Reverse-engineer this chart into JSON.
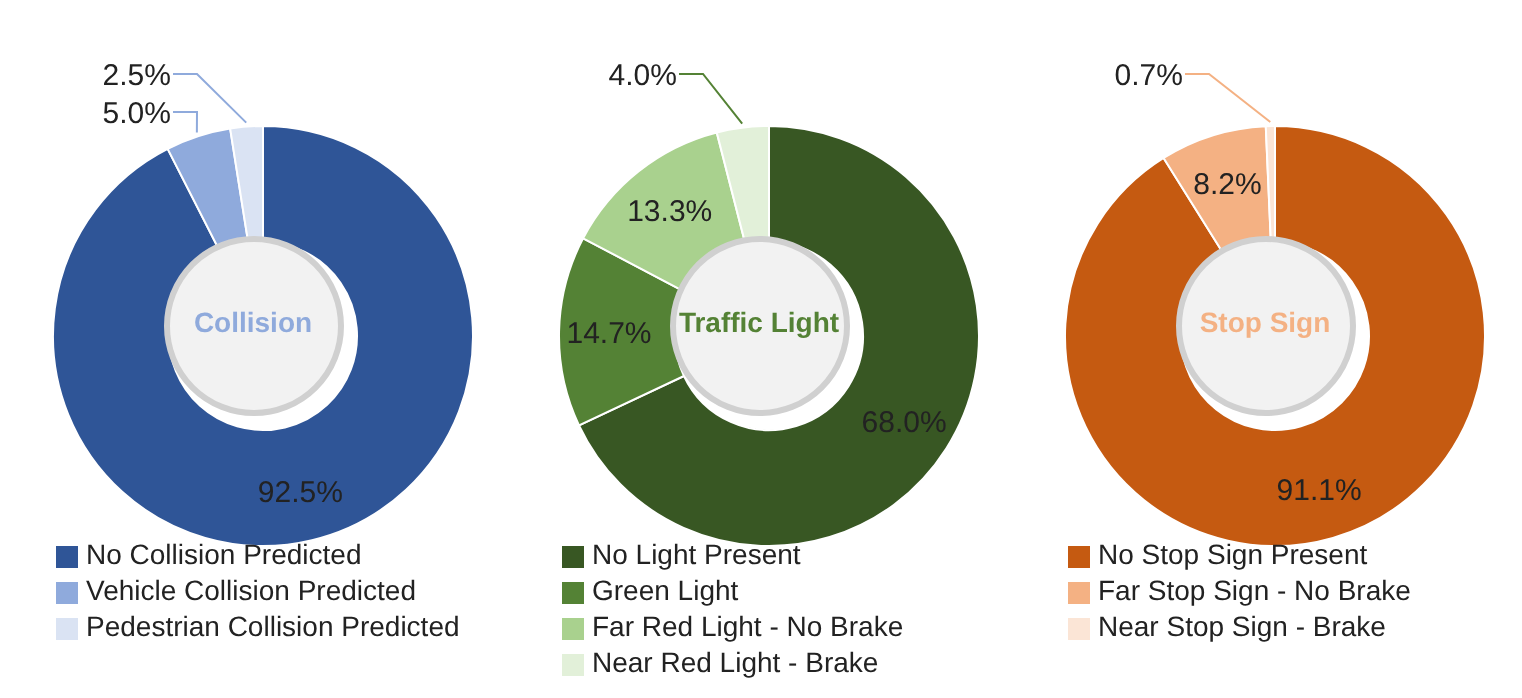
{
  "chart_data": [
    {
      "type": "donut",
      "title": "Collision",
      "categories": [
        "No Collision Predicted",
        "Vehicle Collision Predicted",
        "Pedestrian Collision Predicted"
      ],
      "values": [
        92.5,
        5.0,
        2.5
      ],
      "value_labels": [
        "92.5%",
        "5.0%",
        "2.5%"
      ],
      "colors": [
        "#2f5597",
        "#8faadc",
        "#dae3f3"
      ],
      "legend": "bottom"
    },
    {
      "type": "donut",
      "title": "Traffic Light",
      "categories": [
        "No Light Present",
        "Green Light",
        "Far Red Light - No Brake",
        "Near Red Light - Brake"
      ],
      "values": [
        68.0,
        14.7,
        13.3,
        4.0
      ],
      "value_labels": [
        "68.0%",
        "14.7%",
        "13.3%",
        "4.0%"
      ],
      "colors": [
        "#385723",
        "#548235",
        "#a9d18e",
        "#e2f0d9"
      ],
      "legend": "bottom"
    },
    {
      "type": "donut",
      "title": "Stop Sign",
      "categories": [
        "No Stop Sign Present",
        "Far Stop Sign - No Brake",
        "Near Stop Sign - Brake"
      ],
      "values": [
        91.1,
        8.2,
        0.7
      ],
      "value_labels": [
        "91.1%",
        "8.2%",
        "0.7%"
      ],
      "colors": [
        "#c55a11",
        "#f4b183",
        "#fbe5d6"
      ],
      "legend": "bottom"
    }
  ]
}
